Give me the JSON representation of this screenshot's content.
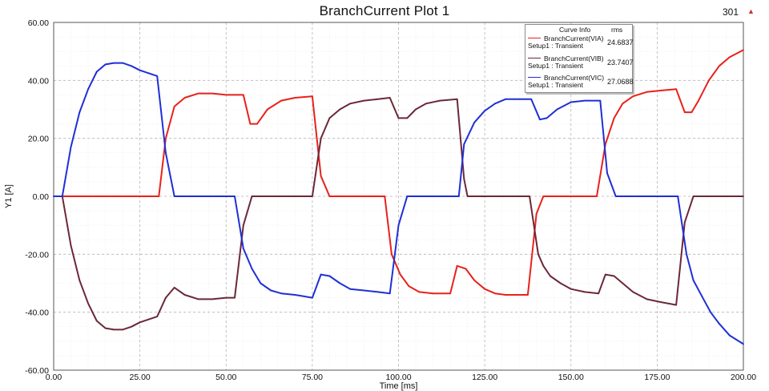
{
  "header": {
    "title": "BranchCurrent Plot 1",
    "badge": "301",
    "badge_icon": "triangle-up-icon",
    "badge_icon_color": "#c0392b"
  },
  "chart_data": {
    "type": "line",
    "title": "BranchCurrent Plot 1",
    "xlabel": "Time [ms]",
    "ylabel": "Y1 [A]",
    "xlim": [
      0,
      200
    ],
    "ylim": [
      -60,
      60
    ],
    "xticks": [
      "0.00",
      "25.00",
      "50.00",
      "75.00",
      "100.00",
      "125.00",
      "150.00",
      "175.00",
      "200.00"
    ],
    "yticks": [
      "60.00",
      "40.00",
      "20.00",
      "0.00",
      "-20.00",
      "-40.00",
      "-60.00"
    ],
    "grid": true,
    "legend_position": "top-right",
    "legend": {
      "header_info": "Curve Info",
      "header_rms": "rms",
      "entries": [
        {
          "name": "BranchCurrent(VIA)",
          "setup": "Setup1 : Transient",
          "rms": "24.6837",
          "color": "#e8211b"
        },
        {
          "name": "BranchCurrent(VIB)",
          "setup": "Setup1 : Transient",
          "rms": "23.7407",
          "color": "#6b2838"
        },
        {
          "name": "BranchCurrent(VIC)",
          "setup": "Setup1 : Transient",
          "rms": "27.0688",
          "color": "#1f2fd6"
        }
      ]
    },
    "series": [
      {
        "name": "BranchCurrent(VIA)",
        "color": "#e8211b",
        "x": [
          0,
          2.5,
          30.5,
          32.5,
          35,
          38,
          42,
          46,
          50,
          52,
          55,
          57,
          59,
          62,
          66,
          70,
          75,
          77.5,
          80,
          82.5,
          96,
          98,
          100.5,
          103,
          106,
          110,
          115,
          117,
          119.5,
          122,
          125,
          128,
          131,
          134,
          137.5,
          140,
          142,
          157.5,
          160,
          162.5,
          165,
          168,
          172,
          176,
          180.5,
          183,
          185,
          187,
          190,
          193,
          196,
          200
        ],
        "y": [
          0,
          0,
          0,
          20,
          31,
          34,
          35.5,
          35.5,
          35,
          35,
          35,
          25,
          25,
          30,
          33,
          34,
          34.5,
          7,
          0,
          0,
          0,
          -20,
          -27,
          -31,
          -33,
          -33.5,
          -33.5,
          -24,
          -25,
          -29,
          -32,
          -33.5,
          -34,
          -34,
          -34,
          -6,
          0,
          0,
          18,
          27,
          32,
          34.5,
          36,
          36.5,
          37,
          29,
          29,
          33,
          40,
          45,
          48,
          50.5
        ]
      },
      {
        "name": "BranchCurrent(VIB)",
        "color": "#6b2838",
        "x": [
          0,
          2.5,
          5,
          7.5,
          10,
          12.5,
          15,
          17.5,
          20,
          22.5,
          25,
          27.5,
          30,
          32.5,
          35,
          38,
          42,
          46,
          50,
          52.5,
          55,
          57.5,
          60,
          75,
          77.5,
          80,
          83,
          86,
          90,
          94,
          97.5,
          100,
          102.5,
          105,
          108,
          112,
          117,
          119,
          120,
          136,
          138,
          140.5,
          142,
          144,
          147,
          150,
          154,
          158,
          160,
          162.5,
          165,
          168,
          172,
          176,
          180.5,
          183,
          185.5,
          188,
          200
        ],
        "y": [
          0,
          0,
          -17,
          -29,
          -37,
          -43,
          -45.5,
          -46,
          -46,
          -45,
          -43.5,
          -42.5,
          -41.5,
          -35,
          -31.5,
          -34,
          -35.5,
          -35.5,
          -35,
          -35,
          -10,
          0,
          0,
          0,
          20,
          27,
          30,
          32,
          33,
          33.5,
          34,
          27,
          27,
          30,
          32,
          33,
          33.5,
          6,
          0,
          0,
          0,
          -20,
          -24,
          -27.5,
          -30,
          -32,
          -33,
          -33.5,
          -27,
          -27.5,
          -30,
          -33,
          -35.5,
          -36.5,
          -37.5,
          -9,
          0,
          0,
          0
        ]
      },
      {
        "name": "BranchCurrent(VIC)",
        "color": "#1f2fd6",
        "x": [
          0,
          2.5,
          5,
          7.5,
          10,
          12.5,
          15,
          17.5,
          20,
          22.5,
          25,
          27.5,
          30,
          32.5,
          35,
          38,
          52.5,
          55,
          57.5,
          60,
          63,
          66,
          70,
          75,
          77.5,
          80,
          83,
          86,
          90,
          94,
          97.5,
          100,
          102.5,
          105,
          117.5,
          119,
          122,
          125,
          128,
          131,
          135,
          138.5,
          141,
          143,
          146,
          150,
          154,
          158.5,
          160.5,
          163,
          166,
          181,
          183.5,
          185.5,
          188,
          190.5,
          193,
          196,
          200
        ],
        "y": [
          0,
          0,
          17,
          29,
          37,
          43,
          45.5,
          46,
          46,
          45,
          43.5,
          42.5,
          41.5,
          15,
          0,
          0,
          0,
          -18,
          -25,
          -30,
          -32.5,
          -33.5,
          -34,
          -35,
          -27,
          -27.5,
          -30,
          -32,
          -32.5,
          -33,
          -33.5,
          -10,
          0,
          0,
          0,
          18,
          25.5,
          29.5,
          32,
          33.5,
          33.5,
          33.5,
          26.5,
          27,
          30,
          32.5,
          33,
          33,
          8,
          0,
          0,
          0,
          -20,
          -29,
          -34.5,
          -40,
          -44,
          -48,
          -51
        ]
      }
    ]
  }
}
